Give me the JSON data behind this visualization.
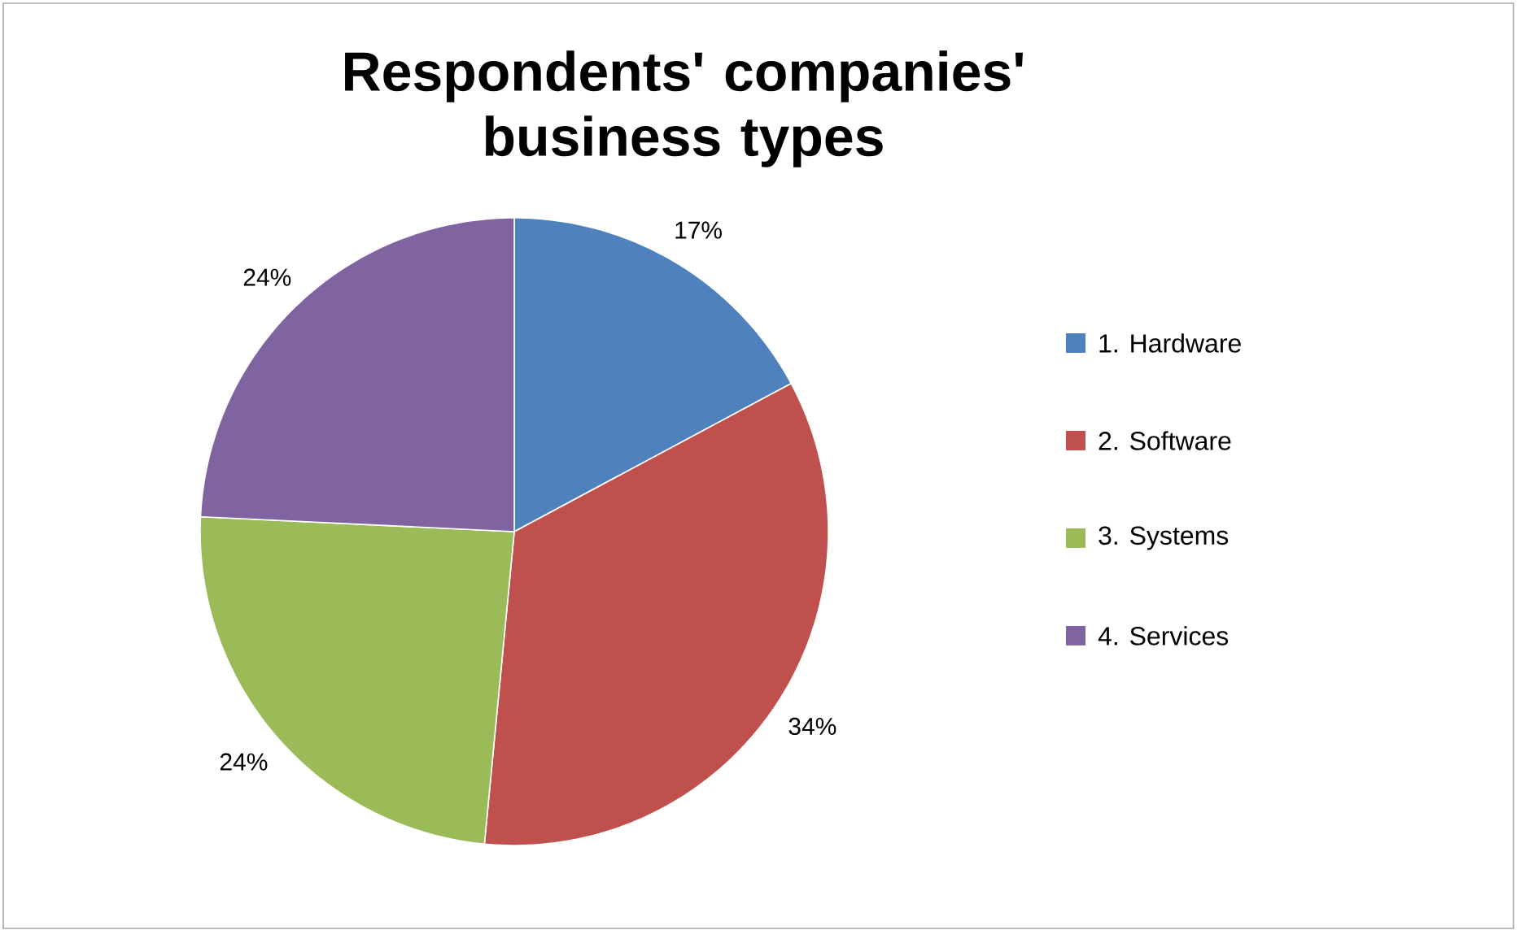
{
  "chart_data": {
    "type": "pie",
    "title": "Respondents' companies' business types",
    "categories": [
      "1. Hardware",
      "2. Software",
      "3. Systems",
      "4. Services"
    ],
    "values": [
      17,
      34,
      24,
      24
    ],
    "value_labels": [
      "17%",
      "34%",
      "24%",
      "24%"
    ],
    "colors": [
      "#4f81bd",
      "#c0504d",
      "#9bbb59",
      "#8064a2"
    ],
    "legend": "right"
  }
}
